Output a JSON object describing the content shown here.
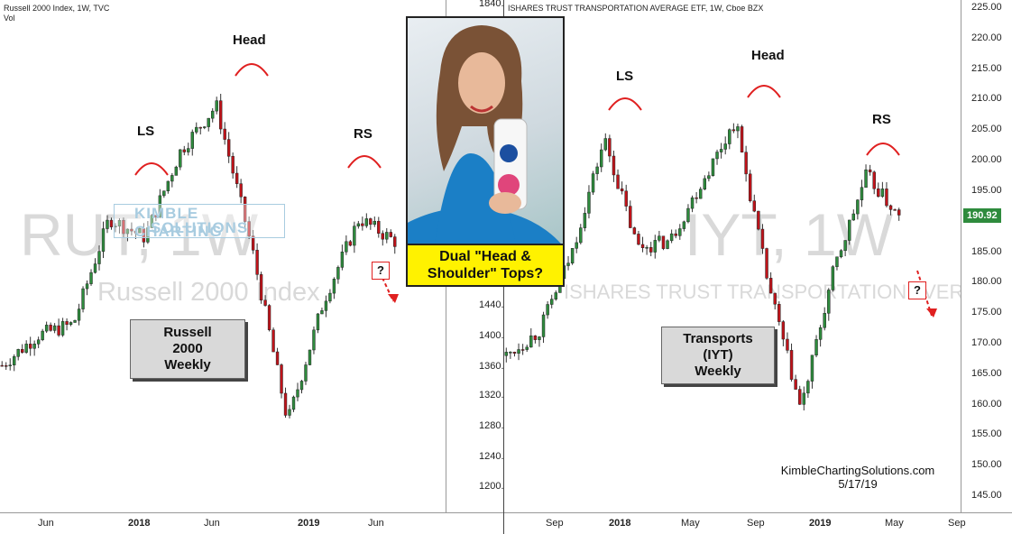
{
  "left": {
    "header": [
      "Russell 2000 Index, 1W, TVC",
      "Vol"
    ],
    "watermark_big": "RUT, 1W",
    "watermark_small": "Russell 2000 Index",
    "y_ticks": [
      "1840.000",
      "1440.000",
      "1400.000",
      "1360.000",
      "1320.000",
      "1280.000",
      "1240.000",
      "1200.000"
    ],
    "x_ticks": [
      "Jun",
      "2018",
      "Jun",
      "2019",
      "Jun"
    ],
    "annotations": {
      "ls": "LS",
      "head": "Head",
      "rs": "RS",
      "question": "?"
    },
    "box": [
      "Russell",
      "2000",
      "Weekly"
    ],
    "logo": [
      "KIMBLE CHARTING",
      "SOLUTIONS"
    ]
  },
  "center": {
    "caption": [
      "Dual \"Head &",
      "Shoulder\" Tops?"
    ]
  },
  "right": {
    "header": "ISHARES TRUST TRANSPORTATION AVERAGE ETF, 1W, Cboe BZX",
    "watermark_big": "IYT, 1W",
    "watermark_small": "ISHARES TRUST TRANSPORTATION AVERAGE ETF",
    "y_ticks": [
      "225.00",
      "220.00",
      "215.00",
      "210.00",
      "205.00",
      "200.00",
      "195.00",
      "185.00",
      "180.00",
      "175.00",
      "170.00",
      "165.00",
      "160.00",
      "155.00",
      "150.00",
      "145.00"
    ],
    "last_price": "190.92",
    "x_ticks": [
      "Sep",
      "2018",
      "May",
      "Sep",
      "2019",
      "May",
      "Sep"
    ],
    "annotations": {
      "ls": "LS",
      "head": "Head",
      "rs": "RS",
      "question": "?"
    },
    "box": [
      "Transports",
      "(IYT)",
      "Weekly"
    ],
    "credit": [
      "KimbleChartingSolutions.com",
      "5/17/19"
    ]
  },
  "colors": {
    "up": "#2e8b3d",
    "down": "#c0131a",
    "arc": "#e02020",
    "caption_bg": "#fff200"
  },
  "chart_data": [
    {
      "type": "candlestick",
      "title": "Russell 2000 Index, 1W, TVC",
      "x": [
        "2017-04",
        "2017-06",
        "2017-09",
        "2018-01",
        "2018-03",
        "2018-06",
        "2018-08",
        "2018-10",
        "2018-12",
        "2019-01",
        "2019-03",
        "2019-05"
      ],
      "values": [
        1375,
        1415,
        1430,
        1570,
        1545,
        1660,
        1720,
        1530,
        1300,
        1460,
        1570,
        1540
      ],
      "ylim": [
        1180,
        1860
      ],
      "patterns": [
        "LS",
        "Head",
        "RS"
      ]
    },
    {
      "type": "candlestick",
      "title": "ISHARES TRUST TRANSPORTATION AVERAGE ETF, 1W, Cboe BZX",
      "x": [
        "2017-08",
        "2017-10",
        "2017-12",
        "2018-01",
        "2018-03",
        "2018-05",
        "2018-07",
        "2018-09",
        "2018-11",
        "2018-12",
        "2019-02",
        "2019-04",
        "2019-05"
      ],
      "values": [
        168,
        172,
        185,
        204,
        186,
        187,
        197,
        207,
        180,
        159,
        182,
        198,
        190.92
      ],
      "ylim": [
        142,
        227
      ],
      "last": 190.92,
      "patterns": [
        "LS",
        "Head",
        "RS"
      ]
    }
  ]
}
